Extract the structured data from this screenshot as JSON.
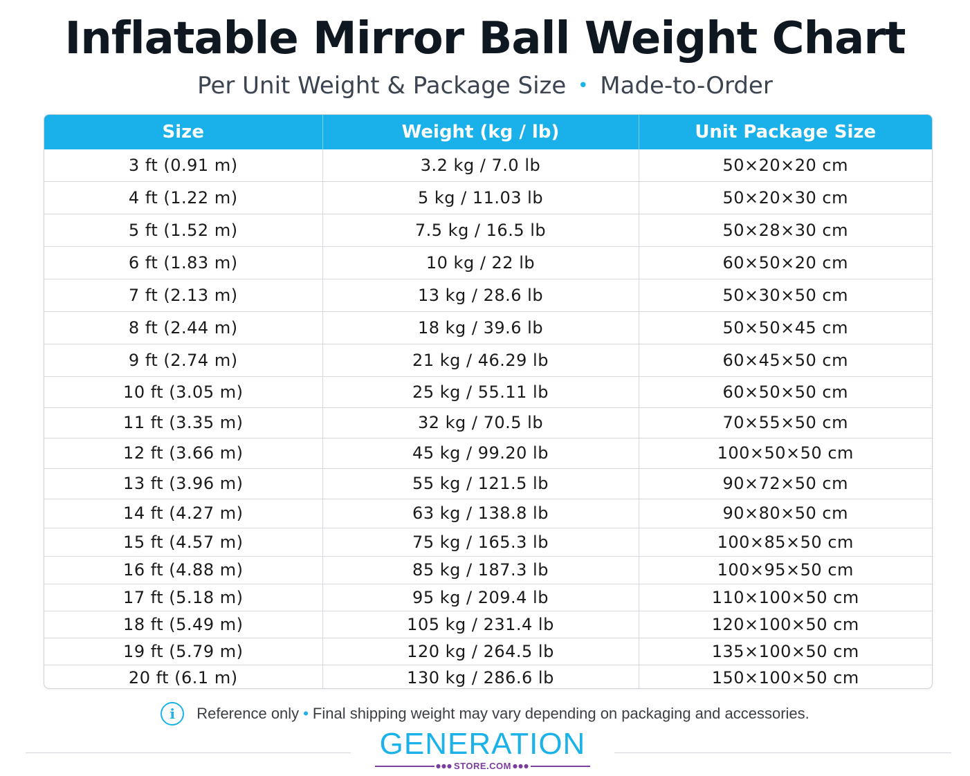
{
  "header": {
    "title": "Inflatable Mirror Ball Weight Chart",
    "subtitle_left": "Per Unit Weight & Package Size",
    "subtitle_separator": "•",
    "subtitle_right": "Made-to-Order"
  },
  "table": {
    "columns": [
      "Size",
      "Weight (kg / lb)",
      "Unit Package Size"
    ],
    "rows": [
      [
        "3 ft (0.91 m)",
        "3.2 kg / 7.0 lb",
        "50×20×20 cm"
      ],
      [
        "4 ft (1.22 m)",
        "5 kg / 11.03 lb",
        "50×20×30 cm"
      ],
      [
        "5 ft (1.52 m)",
        "7.5 kg / 16.5 lb",
        "50×28×30 cm"
      ],
      [
        "6 ft (1.83 m)",
        "10 kg / 22 lb",
        "60×50×20 cm"
      ],
      [
        "7 ft (2.13 m)",
        "13 kg / 28.6 lb",
        "50×30×50 cm"
      ],
      [
        "8 ft (2.44 m)",
        "18 kg / 39.6 lb",
        "50×50×45 cm"
      ],
      [
        "9 ft (2.74 m)",
        "21 kg / 46.29 lb",
        "60×45×50 cm"
      ],
      [
        "10 ft (3.05 m)",
        "25 kg / 55.11 lb",
        "60×50×50 cm"
      ],
      [
        "11 ft (3.35 m)",
        "32 kg / 70.5 lb",
        "70×55×50 cm"
      ],
      [
        "12 ft (3.66 m)",
        "45 kg / 99.20 lb",
        "100×50×50 cm"
      ],
      [
        "13 ft (3.96 m)",
        "55 kg / 121.5 lb",
        "90×72×50 cm"
      ],
      [
        "14 ft (4.27 m)",
        "63 kg / 138.8 lb",
        "90×80×50 cm"
      ],
      [
        "15 ft (4.57 m)",
        "75 kg / 165.3 lb",
        "100×85×50 cm"
      ],
      [
        "16 ft (4.88 m)",
        "85 kg / 187.3 lb",
        "100×95×50 cm"
      ],
      [
        "17 ft (5.18 m)",
        "95 kg / 209.4 lb",
        "110×100×50 cm"
      ],
      [
        "18 ft (5.49 m)",
        "105 kg / 231.4 lb",
        "120×100×50 cm"
      ],
      [
        "19 ft (5.79 m)",
        "120 kg / 264.5 lb",
        "135×100×50 cm"
      ],
      [
        "20 ft (6.1 m)",
        "130 kg / 286.6 lb",
        "150×100×50 cm"
      ]
    ]
  },
  "footer": {
    "info_icon": "info-icon",
    "note_left": "Reference only",
    "note_separator": "•",
    "note_right": "Final shipping weight may vary depending on packaging and accessories.",
    "logo_word": "GENERATION",
    "logo_sub": "STORE.COM"
  },
  "colors": {
    "accent": "#1ab0ea",
    "logo_purple": "#7a3e9d",
    "title": "#0f1720"
  }
}
